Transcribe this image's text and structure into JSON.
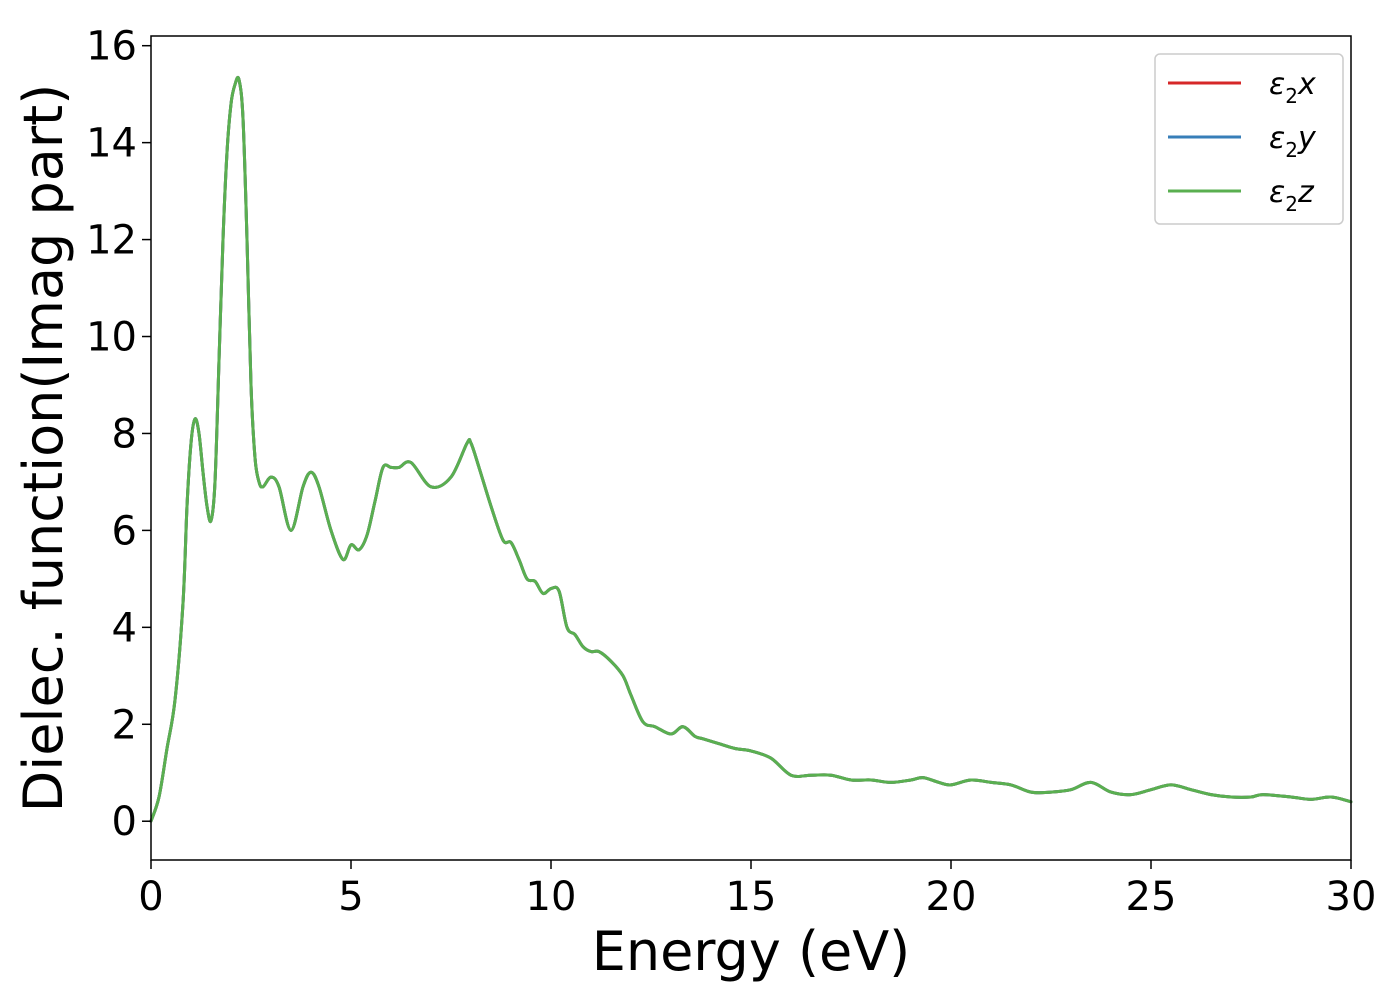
{
  "chart_data": {
    "type": "line",
    "title": "",
    "xlabel": "Energy (eV)",
    "ylabel": "Dielec. function(Imag part)",
    "xlim": [
      0,
      30
    ],
    "ylim": [
      -0.8,
      16.2
    ],
    "xticks": [
      0,
      5,
      10,
      15,
      20,
      25,
      30
    ],
    "yticks": [
      0,
      2,
      4,
      6,
      8,
      10,
      12,
      14,
      16
    ],
    "grid": false,
    "legend_position": "top-right",
    "series": [
      {
        "name": "ε2x",
        "label_base": "ε",
        "label_sub": "2",
        "label_var": "x",
        "color": "#d62728",
        "ref": "base"
      },
      {
        "name": "ε2y",
        "label_base": "ε",
        "label_sub": "2",
        "label_var": "y",
        "color": "#377eb8",
        "ref": "base"
      },
      {
        "name": "ε2z",
        "label_base": "ε",
        "label_sub": "2",
        "label_var": "z",
        "color": "#5aaf50",
        "ref": "base"
      }
    ],
    "base_curve": {
      "x": [
        0,
        0.2,
        0.4,
        0.6,
        0.8,
        0.9,
        1.0,
        1.1,
        1.2,
        1.3,
        1.4,
        1.5,
        1.6,
        1.7,
        1.8,
        1.9,
        2.0,
        2.1,
        2.2,
        2.3,
        2.4,
        2.5,
        2.6,
        2.7,
        2.8,
        3.0,
        3.2,
        3.5,
        3.8,
        4.0,
        4.2,
        4.5,
        4.8,
        5.0,
        5.2,
        5.4,
        5.6,
        5.8,
        6.0,
        6.2,
        6.5,
        7.0,
        7.5,
        7.9,
        8.0,
        8.2,
        8.5,
        8.8,
        9.0,
        9.2,
        9.4,
        9.6,
        9.8,
        10.0,
        10.2,
        10.4,
        10.6,
        10.8,
        11.0,
        11.2,
        11.5,
        11.8,
        12.0,
        12.3,
        12.6,
        13.0,
        13.3,
        13.6,
        13.8,
        14.2,
        14.6,
        15.0,
        15.5,
        16.0,
        16.5,
        17.0,
        17.5,
        18.0,
        18.5,
        19.0,
        19.3,
        19.7,
        20.0,
        20.5,
        21.0,
        21.5,
        22.0,
        22.5,
        23.0,
        23.5,
        24.0,
        24.5,
        25.0,
        25.5,
        26.0,
        26.5,
        27.0,
        27.5,
        27.8,
        28.5,
        29.0,
        29.5,
        30.0
      ],
      "y": [
        0,
        0.5,
        1.5,
        2.5,
        4.5,
        6.5,
        7.8,
        8.3,
        8.0,
        7.2,
        6.5,
        6.2,
        7.0,
        9.5,
        12.0,
        13.8,
        14.8,
        15.2,
        15.3,
        14.5,
        12.0,
        9.0,
        7.5,
        7.0,
        6.9,
        7.1,
        6.9,
        6.0,
        6.9,
        7.2,
        6.9,
        6.0,
        5.4,
        5.7,
        5.6,
        5.9,
        6.6,
        7.3,
        7.3,
        7.3,
        7.4,
        6.9,
        7.1,
        7.8,
        7.8,
        7.3,
        6.5,
        5.8,
        5.75,
        5.4,
        5.0,
        4.95,
        4.7,
        4.8,
        4.75,
        4.0,
        3.85,
        3.6,
        3.5,
        3.5,
        3.3,
        3.0,
        2.6,
        2.05,
        1.95,
        1.8,
        1.95,
        1.75,
        1.7,
        1.6,
        1.5,
        1.45,
        1.3,
        0.95,
        0.95,
        0.95,
        0.85,
        0.85,
        0.8,
        0.85,
        0.9,
        0.8,
        0.75,
        0.85,
        0.8,
        0.75,
        0.6,
        0.6,
        0.65,
        0.8,
        0.6,
        0.55,
        0.65,
        0.75,
        0.65,
        0.55,
        0.5,
        0.5,
        0.55,
        0.5,
        0.45,
        0.5,
        0.4
      ]
    }
  }
}
